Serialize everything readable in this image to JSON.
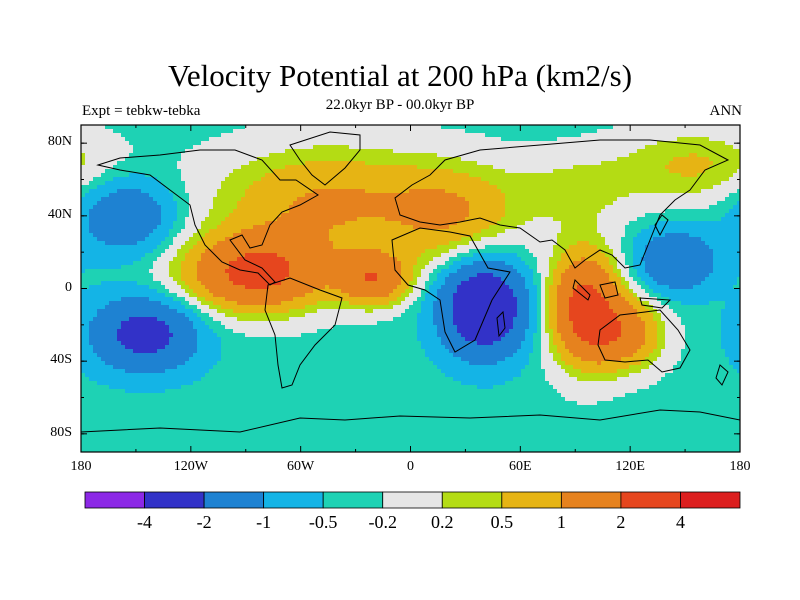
{
  "figure": {
    "title": "Velocity Potential at 200 hPa (km2/s)",
    "left_label": "Expt = tebkw-tebka",
    "center_label": "22.0kyr BP - 00.0kyr BP",
    "right_label": "ANN"
  },
  "axes": {
    "y_ticks": [
      "80N",
      "40N",
      "0",
      "40S",
      "80S"
    ],
    "y_values": [
      80,
      40,
      0,
      -40,
      -80
    ],
    "x_ticks": [
      "180",
      "120W",
      "60W",
      "0",
      "60E",
      "120E",
      "180"
    ],
    "x_values": [
      -180,
      -120,
      -60,
      0,
      60,
      120,
      180
    ],
    "lon_range": [
      -180,
      180
    ],
    "lat_range": [
      -90,
      90
    ]
  },
  "colorbar": {
    "labels": [
      "-4",
      "-2",
      "-1",
      "-0.5",
      "-0.2",
      "0.2",
      "0.5",
      "1",
      "2",
      "4"
    ],
    "colors": [
      "#8c28e6",
      "#3232c8",
      "#1e82d2",
      "#14b4e6",
      "#1ed2b4",
      "#e6e6e6",
      "#b4dc14",
      "#e6b414",
      "#e6821e",
      "#e6461e",
      "#dc1e1e"
    ]
  },
  "chart_data": {
    "type": "heatmap",
    "variable": "Velocity Potential at 200 hPa",
    "units": "km2/s",
    "levels": [
      -4,
      -2,
      -1,
      -0.5,
      -0.2,
      0.2,
      0.5,
      1,
      2,
      4
    ],
    "background_value": -0.35,
    "features": [
      {
        "lon": -45,
        "lat": 48,
        "amplitude": 1.4,
        "sigma_lon": 45,
        "sigma_lat": 22
      },
      {
        "lon": -85,
        "lat": 8,
        "amplitude": 2.6,
        "sigma_lon": 28,
        "sigma_lat": 15
      },
      {
        "lon": -20,
        "lat": 5,
        "amplitude": 2.0,
        "sigma_lon": 14,
        "sigma_lat": 10
      },
      {
        "lon": 25,
        "lat": 40,
        "amplitude": 1.1,
        "sigma_lon": 25,
        "sigma_lat": 20
      },
      {
        "lon": 95,
        "lat": -10,
        "amplitude": 2.7,
        "sigma_lon": 14,
        "sigma_lat": 22
      },
      {
        "lon": 118,
        "lat": -25,
        "amplitude": 1.6,
        "sigma_lon": 15,
        "sigma_lat": 14
      },
      {
        "lon": 40,
        "lat": -10,
        "amplitude": -3.2,
        "sigma_lon": 16,
        "sigma_lat": 18
      },
      {
        "lon": -145,
        "lat": -25,
        "amplitude": -2.2,
        "sigma_lon": 20,
        "sigma_lat": 14
      },
      {
        "lon": -155,
        "lat": 40,
        "amplitude": -1.5,
        "sigma_lon": 18,
        "sigma_lat": 14
      },
      {
        "lon": 145,
        "lat": 15,
        "amplitude": -1.6,
        "sigma_lon": 15,
        "sigma_lat": 12
      },
      {
        "lon": 155,
        "lat": 68,
        "amplitude": 0.9,
        "sigma_lon": 30,
        "sigma_lat": 15
      },
      {
        "lon": 90,
        "lat": 55,
        "amplitude": 0.6,
        "sigma_lon": 25,
        "sigma_lat": 15
      }
    ]
  }
}
